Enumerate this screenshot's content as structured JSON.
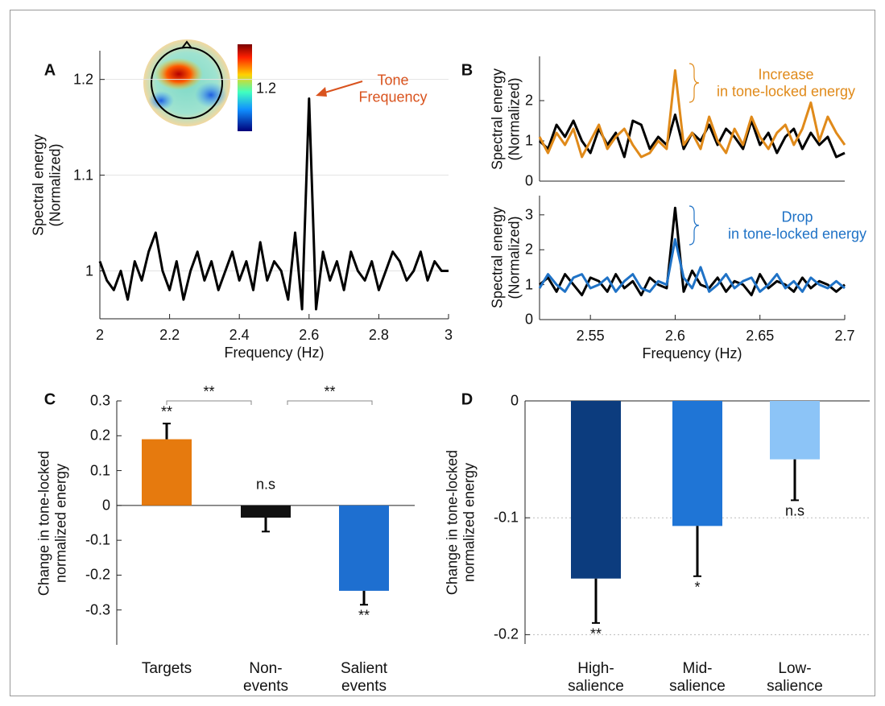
{
  "chart_data": [
    {
      "type": "line",
      "panel": "A",
      "xlabel": "Frequency (Hz)",
      "ylabel": "Spectral energy\n(Normalized)",
      "annotation": "Tone\nFrequency",
      "annotation_color": "#d9531e",
      "colorbar_label": "1.2",
      "x": [
        2.0,
        2.02,
        2.04,
        2.06,
        2.08,
        2.1,
        2.12,
        2.14,
        2.16,
        2.18,
        2.2,
        2.22,
        2.24,
        2.26,
        2.28,
        2.3,
        2.32,
        2.34,
        2.36,
        2.38,
        2.4,
        2.42,
        2.44,
        2.46,
        2.48,
        2.5,
        2.52,
        2.54,
        2.56,
        2.58,
        2.6,
        2.62,
        2.64,
        2.66,
        2.68,
        2.7,
        2.72,
        2.74,
        2.76,
        2.78,
        2.8,
        2.82,
        2.84,
        2.86,
        2.88,
        2.9,
        2.92,
        2.94,
        2.96,
        2.98,
        3.0
      ],
      "series": [
        {
          "color": "#000000",
          "values": [
            1.01,
            0.99,
            0.98,
            1.0,
            0.97,
            1.01,
            0.99,
            1.02,
            1.04,
            1.0,
            0.98,
            1.01,
            0.97,
            1.0,
            1.02,
            0.99,
            1.01,
            0.98,
            1.0,
            1.02,
            0.99,
            1.01,
            0.98,
            1.03,
            0.99,
            1.01,
            1.0,
            0.97,
            1.04,
            0.96,
            1.18,
            0.96,
            1.02,
            0.99,
            1.01,
            0.98,
            1.02,
            1.0,
            0.99,
            1.01,
            0.98,
            1.0,
            1.02,
            1.01,
            0.99,
            1.0,
            1.02,
            0.99,
            1.01,
            1.0,
            1.0
          ]
        }
      ],
      "xlim": [
        2,
        3
      ],
      "ylim": [
        0.95,
        1.23
      ],
      "xticks": [
        2,
        2.2,
        2.4,
        2.6,
        2.8,
        3
      ],
      "yticks": [
        1,
        1.1,
        1.2
      ],
      "grid": true
    },
    {
      "type": "line",
      "panel": "B",
      "ylabel": "Spectral energy\n(Normalized)",
      "annotation": "Increase\nin tone-locked energy",
      "annotation_color": "#e08a1a",
      "x": [
        2.52,
        2.525,
        2.53,
        2.535,
        2.54,
        2.545,
        2.55,
        2.555,
        2.56,
        2.565,
        2.57,
        2.575,
        2.58,
        2.585,
        2.59,
        2.595,
        2.6,
        2.605,
        2.61,
        2.615,
        2.62,
        2.625,
        2.63,
        2.635,
        2.64,
        2.645,
        2.65,
        2.655,
        2.66,
        2.665,
        2.67,
        2.675,
        2.68,
        2.685,
        2.69,
        2.695,
        2.7
      ],
      "series": [
        {
          "color": "#000000",
          "values": [
            1.0,
            0.8,
            1.4,
            1.1,
            1.5,
            1.0,
            0.7,
            1.3,
            0.9,
            1.2,
            0.6,
            1.5,
            1.4,
            0.8,
            1.1,
            0.9,
            1.65,
            0.8,
            1.2,
            1.0,
            1.4,
            0.9,
            1.3,
            1.1,
            0.8,
            1.5,
            0.9,
            1.2,
            0.7,
            1.1,
            1.3,
            0.8,
            1.2,
            0.9,
            1.1,
            0.6,
            0.7
          ]
        },
        {
          "color": "#e08a1a",
          "values": [
            1.1,
            0.7,
            1.2,
            0.9,
            1.3,
            0.6,
            1.0,
            1.4,
            0.8,
            1.1,
            1.3,
            0.9,
            0.6,
            0.7,
            1.0,
            0.8,
            2.75,
            0.9,
            1.2,
            0.8,
            1.6,
            1.0,
            0.7,
            1.3,
            0.9,
            1.6,
            1.1,
            0.8,
            1.2,
            1.4,
            0.9,
            1.3,
            1.95,
            1.0,
            1.6,
            1.2,
            0.9
          ]
        }
      ],
      "xlim": [
        2.52,
        2.7
      ],
      "ylim": [
        0,
        3.1
      ],
      "yticks": [
        0,
        1,
        2
      ],
      "grid": false
    },
    {
      "type": "line",
      "xlabel": "Frequency (Hz)",
      "ylabel": "Spectral energy\n(Normalized)",
      "annotation": "Drop\nin tone-locked energy",
      "annotation_color": "#1f72c6",
      "x": [
        2.52,
        2.525,
        2.53,
        2.535,
        2.54,
        2.545,
        2.55,
        2.555,
        2.56,
        2.565,
        2.57,
        2.575,
        2.58,
        2.585,
        2.59,
        2.595,
        2.6,
        2.605,
        2.61,
        2.615,
        2.62,
        2.625,
        2.63,
        2.635,
        2.64,
        2.645,
        2.65,
        2.655,
        2.66,
        2.665,
        2.67,
        2.675,
        2.68,
        2.685,
        2.69,
        2.695,
        2.7
      ],
      "series": [
        {
          "color": "#000000",
          "values": [
            1.0,
            1.2,
            0.8,
            1.3,
            1.0,
            0.7,
            1.2,
            1.1,
            0.8,
            1.3,
            0.9,
            1.1,
            0.7,
            1.2,
            1.0,
            0.9,
            3.2,
            0.8,
            1.4,
            1.0,
            0.9,
            1.2,
            0.8,
            1.1,
            1.0,
            0.7,
            1.3,
            0.9,
            1.1,
            1.0,
            0.8,
            1.2,
            0.9,
            1.1,
            1.0,
            0.8,
            1.0
          ]
        },
        {
          "color": "#1f72c6",
          "values": [
            0.9,
            1.3,
            1.0,
            0.8,
            1.2,
            1.3,
            0.9,
            1.0,
            1.2,
            0.8,
            1.1,
            1.3,
            0.9,
            0.8,
            1.1,
            1.0,
            2.3,
            1.2,
            0.9,
            1.5,
            0.8,
            1.0,
            1.3,
            0.9,
            1.1,
            1.2,
            0.8,
            1.0,
            1.3,
            0.9,
            1.1,
            0.8,
            1.2,
            1.0,
            0.9,
            1.1,
            0.9
          ]
        }
      ],
      "xlim": [
        2.52,
        2.7
      ],
      "ylim": [
        0,
        3.55
      ],
      "xticks": [
        2.55,
        2.6,
        2.65,
        2.7
      ],
      "yticks": [
        0,
        1,
        2,
        3
      ],
      "grid": false
    },
    {
      "type": "bar",
      "panel": "C",
      "ylabel": "Change in tone-locked\nnormalized energy",
      "categories": [
        "Targets",
        "Non-\nevents",
        "Salient\nevents"
      ],
      "values": [
        0.19,
        -0.035,
        -0.245
      ],
      "errors": [
        0.045,
        0.04,
        0.04
      ],
      "colors": [
        "#e67a0e",
        "#111111",
        "#1e6fd0"
      ],
      "significance": [
        "**",
        "n.s",
        "**"
      ],
      "comparisons": [
        "**",
        "**"
      ],
      "ylim": [
        -0.4,
        0.3
      ],
      "yticks": [
        0.3,
        0.2,
        0.1,
        0,
        -0.1,
        -0.2,
        -0.3
      ],
      "grid": false
    },
    {
      "type": "bar",
      "panel": "D",
      "ylabel": "Change in tone-locked\nnormalized energy",
      "categories": [
        "High-\nsalience",
        "Mid-\nsalience",
        "Low-\nsalience"
      ],
      "values": [
        -0.152,
        -0.107,
        -0.05
      ],
      "errors": [
        0.038,
        0.043,
        0.035
      ],
      "colors": [
        "#0c3c7e",
        "#1f75d6",
        "#8cc4f7"
      ],
      "significance": [
        "**",
        "*",
        "n.s"
      ],
      "ylim": [
        -0.208,
        0
      ],
      "yticks": [
        0,
        -0.1,
        -0.2
      ],
      "grid": true
    }
  ]
}
